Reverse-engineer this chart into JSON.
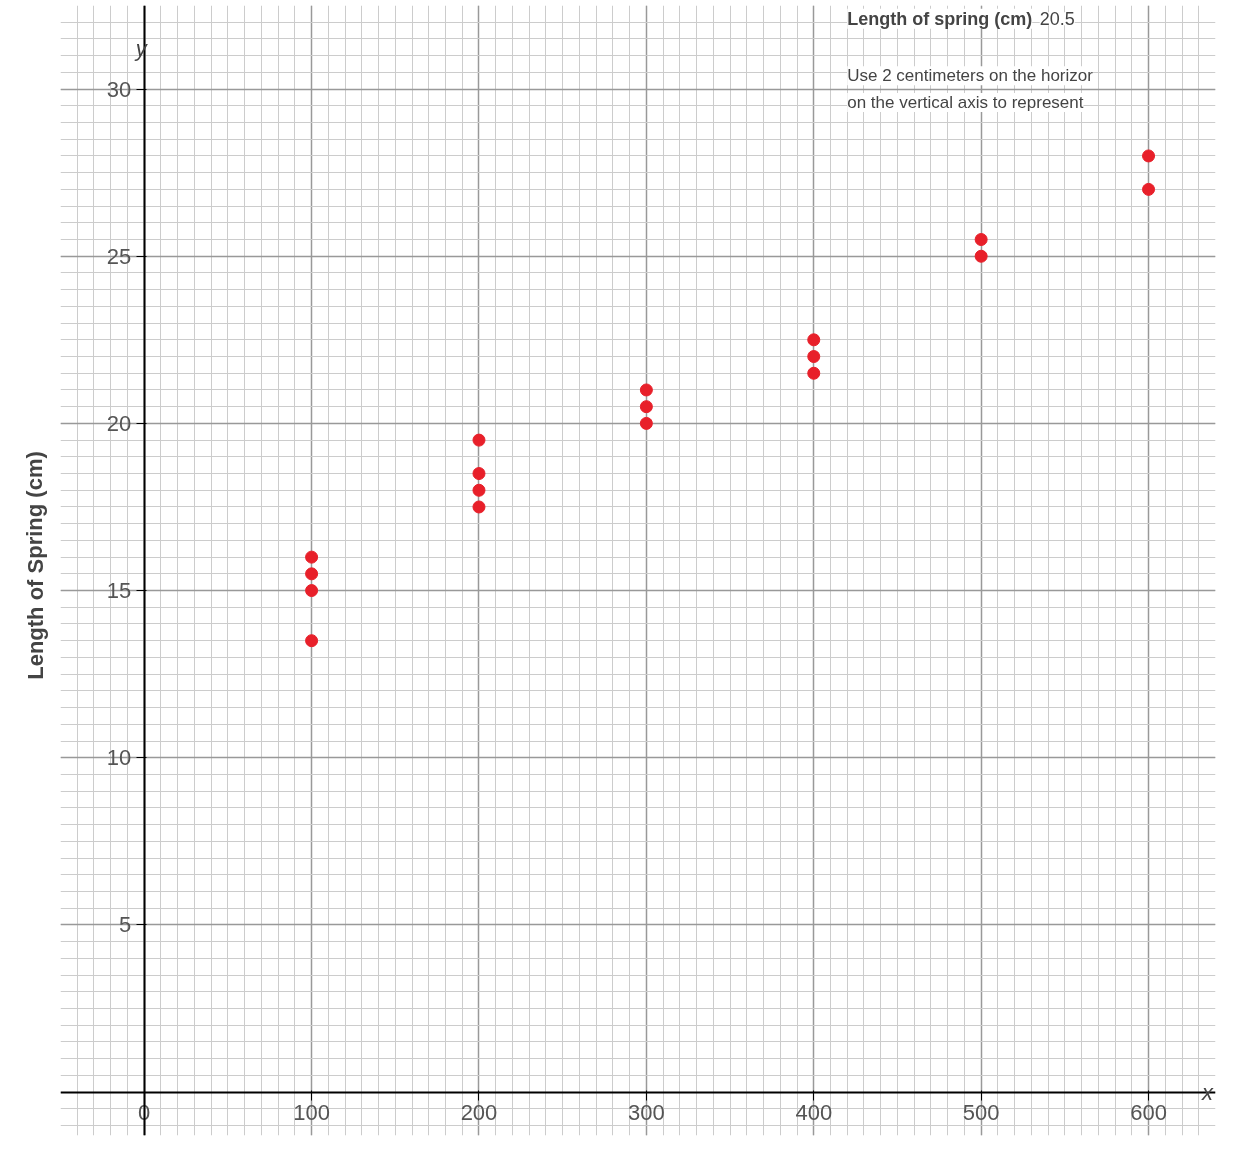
{
  "chart_data": {
    "type": "scatter",
    "ylabel": "Length of Spring (cm)",
    "x": [
      100,
      100,
      100,
      100,
      200,
      200,
      200,
      200,
      300,
      300,
      300,
      400,
      400,
      400,
      500,
      500,
      600,
      600
    ],
    "series": [
      {
        "color": "#e8202a",
        "values": [
          16,
          15.5,
          15,
          13.5,
          19.5,
          18.5,
          18,
          17.5,
          21,
          20.5,
          20,
          22.5,
          22,
          21.5,
          25.5,
          25,
          28,
          27
        ]
      }
    ],
    "xlim": [
      -50,
      640
    ],
    "ylim": [
      -1.3,
      32.5
    ],
    "xticks": [
      {
        "value": 0,
        "label": "0"
      },
      100,
      200,
      300,
      400,
      500,
      600
    ],
    "yticks": [
      5,
      10,
      15,
      20,
      25,
      30
    ],
    "grid": true,
    "marker": "circle",
    "annotations": [
      "y",
      "x",
      "Length of spring (cm)",
      "20.5",
      "Use 2 centimeters on the horizor",
      "on the vertical axis to represent"
    ]
  }
}
